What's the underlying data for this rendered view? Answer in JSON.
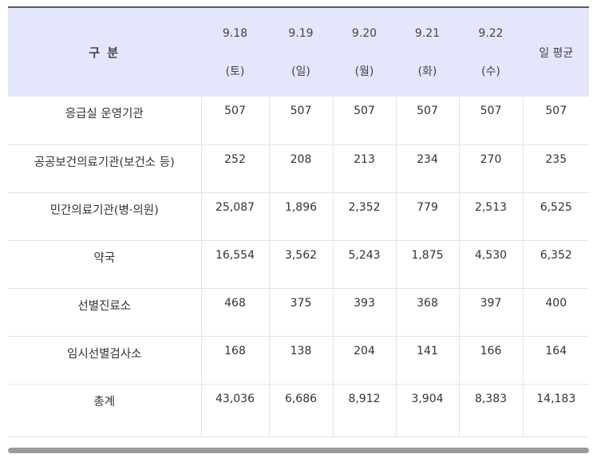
{
  "table": {
    "corner_label": "구 분",
    "columns": [
      {
        "date": "9.18",
        "day": "(토)"
      },
      {
        "date": "9.19",
        "day": "(일)"
      },
      {
        "date": "9.20",
        "day": "(월)"
      },
      {
        "date": "9.21",
        "day": "(화)"
      },
      {
        "date": "9.22",
        "day": "(수)"
      }
    ],
    "avg_label": "일 평균",
    "rows": [
      {
        "label": "응급실 운영기관",
        "values": [
          "507",
          "507",
          "507",
          "507",
          "507",
          "507"
        ]
      },
      {
        "label": "공공보건의료기관(보건소 등)",
        "values": [
          "252",
          "208",
          "213",
          "234",
          "270",
          "235"
        ]
      },
      {
        "label": "민간의료기관(병·의원)",
        "values": [
          "25,087",
          "1,896",
          "2,352",
          "779",
          "2,513",
          "6,525"
        ]
      },
      {
        "label": "약국",
        "values": [
          "16,554",
          "3,562",
          "5,243",
          "1,875",
          "4,530",
          "6,352"
        ]
      },
      {
        "label": "선별진료소",
        "values": [
          "468",
          "375",
          "393",
          "368",
          "397",
          "400"
        ]
      },
      {
        "label": "임시선별검사소",
        "values": [
          "168",
          "138",
          "204",
          "141",
          "166",
          "164"
        ]
      },
      {
        "label": "총계",
        "values": [
          "43,036",
          "6,686",
          "8,912",
          "3,904",
          "8,383",
          "14,183"
        ]
      }
    ]
  },
  "scrollbar": {
    "position": 0
  }
}
